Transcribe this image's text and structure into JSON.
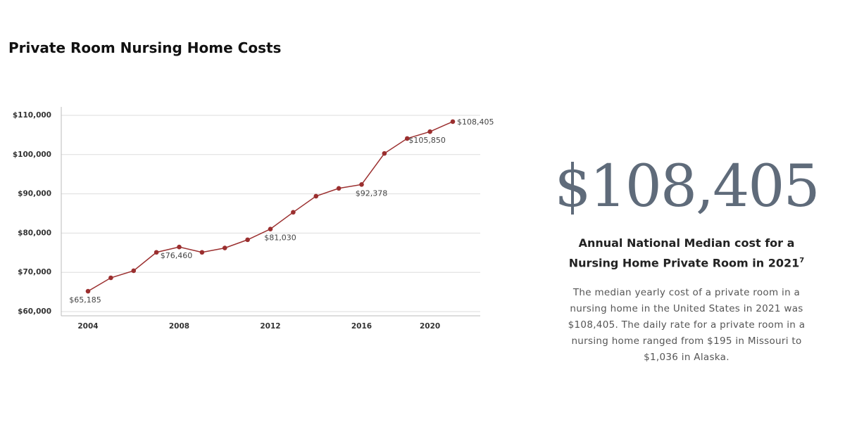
{
  "chart_data": {
    "type": "line",
    "title": "Private Room Nursing Home Costs",
    "categories": [
      "2004",
      null,
      null,
      null,
      "2008",
      null,
      null,
      null,
      "2012",
      null,
      null,
      null,
      "2016",
      null,
      null,
      "2020",
      null
    ],
    "values": [
      65185,
      68600,
      70400,
      75100,
      76460,
      75100,
      76200,
      78300,
      81030,
      85300,
      89400,
      91400,
      92378,
      100300,
      104100,
      105850,
      108405
    ],
    "value_labels": [
      "$65,185",
      null,
      null,
      null,
      "$76,460",
      null,
      null,
      null,
      "$81,030",
      null,
      null,
      null,
      "$92,378",
      null,
      null,
      "$105,850",
      "$108,405"
    ],
    "color": "#9b2f2f",
    "ylim": [
      60000,
      110000
    ],
    "yticks": [
      {
        "value": 60000,
        "label": "$60,000"
      },
      {
        "value": 70000,
        "label": "$70,000"
      },
      {
        "value": 80000,
        "label": "$80,000"
      },
      {
        "value": 90000,
        "label": "$90,000"
      },
      {
        "value": 100000,
        "label": "$100,000"
      },
      {
        "value": 110000,
        "label": "$110,000"
      }
    ],
    "grid": true
  },
  "highlight": {
    "value_text": "$108,405",
    "heading_lines": [
      "Annual National Median cost for a",
      "Nursing Home Private Room in 2021"
    ],
    "footnote": "7",
    "body_lines": [
      "The median yearly cost of a private room in a",
      "nursing home in the United States in 2021 was",
      "$108,405. The daily rate for a private room in a",
      "nursing home ranged from $195 in Missouri to",
      "$1,036 in Alaska."
    ]
  }
}
